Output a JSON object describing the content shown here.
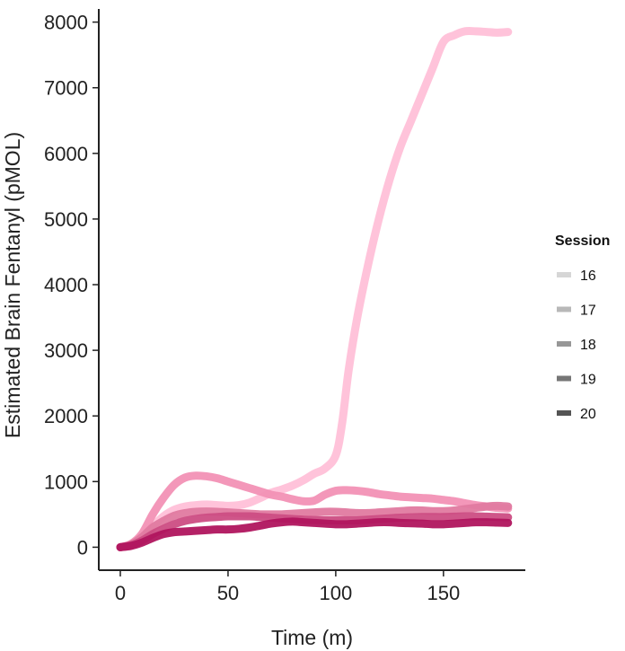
{
  "chart_data": {
    "type": "line",
    "xlabel": "Time (m)",
    "ylabel": "Estimated Brain Fentanyl (pMOL)",
    "xlim": [
      -10,
      188
    ],
    "ylim": [
      -350,
      8200
    ],
    "xticks": [
      0,
      50,
      100,
      150
    ],
    "yticks": [
      0,
      1000,
      2000,
      3000,
      4000,
      5000,
      6000,
      7000,
      8000
    ],
    "grid": false,
    "legend": {
      "title": "Session",
      "placement": "right"
    },
    "series": [
      {
        "name": "16",
        "color": "#ffc0d8",
        "legend_color": "#d6d6d6",
        "x": [
          0,
          5,
          10,
          15,
          20,
          25,
          30,
          35,
          40,
          45,
          50,
          55,
          60,
          65,
          70,
          75,
          80,
          85,
          90,
          95,
          100,
          103,
          106,
          110,
          115,
          120,
          125,
          130,
          135,
          140,
          145,
          150,
          155,
          160,
          165,
          170,
          175,
          180
        ],
        "y": [
          0,
          40,
          150,
          320,
          470,
          570,
          620,
          640,
          650,
          640,
          630,
          640,
          680,
          750,
          830,
          880,
          940,
          1020,
          1120,
          1200,
          1400,
          1900,
          2700,
          3500,
          4300,
          5000,
          5600,
          6100,
          6500,
          6900,
          7300,
          7700,
          7800,
          7860,
          7860,
          7850,
          7840,
          7850
        ]
      },
      {
        "name": "17",
        "color": "#f291b5",
        "legend_color": "#b8b8b8",
        "x": [
          0,
          5,
          10,
          15,
          20,
          25,
          30,
          35,
          40,
          45,
          50,
          55,
          60,
          65,
          70,
          75,
          80,
          85,
          90,
          95,
          100,
          105,
          110,
          115,
          120,
          125,
          130,
          135,
          140,
          145,
          150,
          155,
          160,
          165,
          170,
          175,
          180
        ],
        "y": [
          0,
          50,
          200,
          500,
          750,
          950,
          1060,
          1090,
          1080,
          1050,
          1000,
          950,
          900,
          850,
          800,
          770,
          730,
          700,
          710,
          800,
          860,
          870,
          860,
          840,
          810,
          790,
          770,
          760,
          750,
          740,
          720,
          700,
          670,
          640,
          620,
          600,
          590
        ]
      },
      {
        "name": "18",
        "color": "#e07aa0",
        "legend_color": "#979797",
        "x": [
          0,
          5,
          10,
          15,
          20,
          25,
          30,
          35,
          40,
          45,
          50,
          55,
          60,
          65,
          70,
          75,
          80,
          85,
          90,
          95,
          100,
          105,
          110,
          115,
          120,
          125,
          130,
          135,
          140,
          145,
          150,
          155,
          160,
          165,
          170,
          175,
          180
        ],
        "y": [
          0,
          40,
          150,
          300,
          400,
          480,
          520,
          540,
          545,
          540,
          530,
          520,
          510,
          500,
          500,
          500,
          510,
          520,
          530,
          540,
          540,
          530,
          520,
          520,
          530,
          540,
          550,
          560,
          560,
          550,
          550,
          560,
          580,
          600,
          620,
          630,
          620
        ]
      },
      {
        "name": "19",
        "color": "#cc4d83",
        "legend_color": "#767676",
        "x": [
          0,
          5,
          10,
          15,
          20,
          25,
          30,
          35,
          40,
          45,
          50,
          55,
          60,
          65,
          70,
          75,
          80,
          85,
          90,
          95,
          100,
          105,
          110,
          115,
          120,
          125,
          130,
          135,
          140,
          145,
          150,
          155,
          160,
          165,
          170,
          175,
          180
        ],
        "y": [
          0,
          30,
          100,
          200,
          280,
          350,
          400,
          430,
          450,
          460,
          470,
          470,
          470,
          460,
          450,
          440,
          430,
          420,
          415,
          410,
          410,
          410,
          410,
          420,
          430,
          440,
          450,
          455,
          460,
          460,
          460,
          465,
          470,
          470,
          465,
          460,
          455
        ]
      },
      {
        "name": "20",
        "color": "#b0155e",
        "legend_color": "#545454",
        "x": [
          0,
          5,
          10,
          15,
          20,
          25,
          30,
          35,
          40,
          45,
          50,
          55,
          60,
          65,
          70,
          75,
          80,
          85,
          90,
          95,
          100,
          105,
          110,
          115,
          120,
          125,
          130,
          135,
          140,
          145,
          150,
          155,
          160,
          165,
          170,
          175,
          180
        ],
        "y": [
          0,
          20,
          70,
          140,
          200,
          230,
          240,
          250,
          260,
          270,
          270,
          280,
          300,
          330,
          360,
          380,
          390,
          380,
          370,
          360,
          350,
          350,
          360,
          370,
          380,
          380,
          370,
          365,
          360,
          350,
          350,
          360,
          370,
          380,
          380,
          375,
          370
        ]
      }
    ]
  }
}
